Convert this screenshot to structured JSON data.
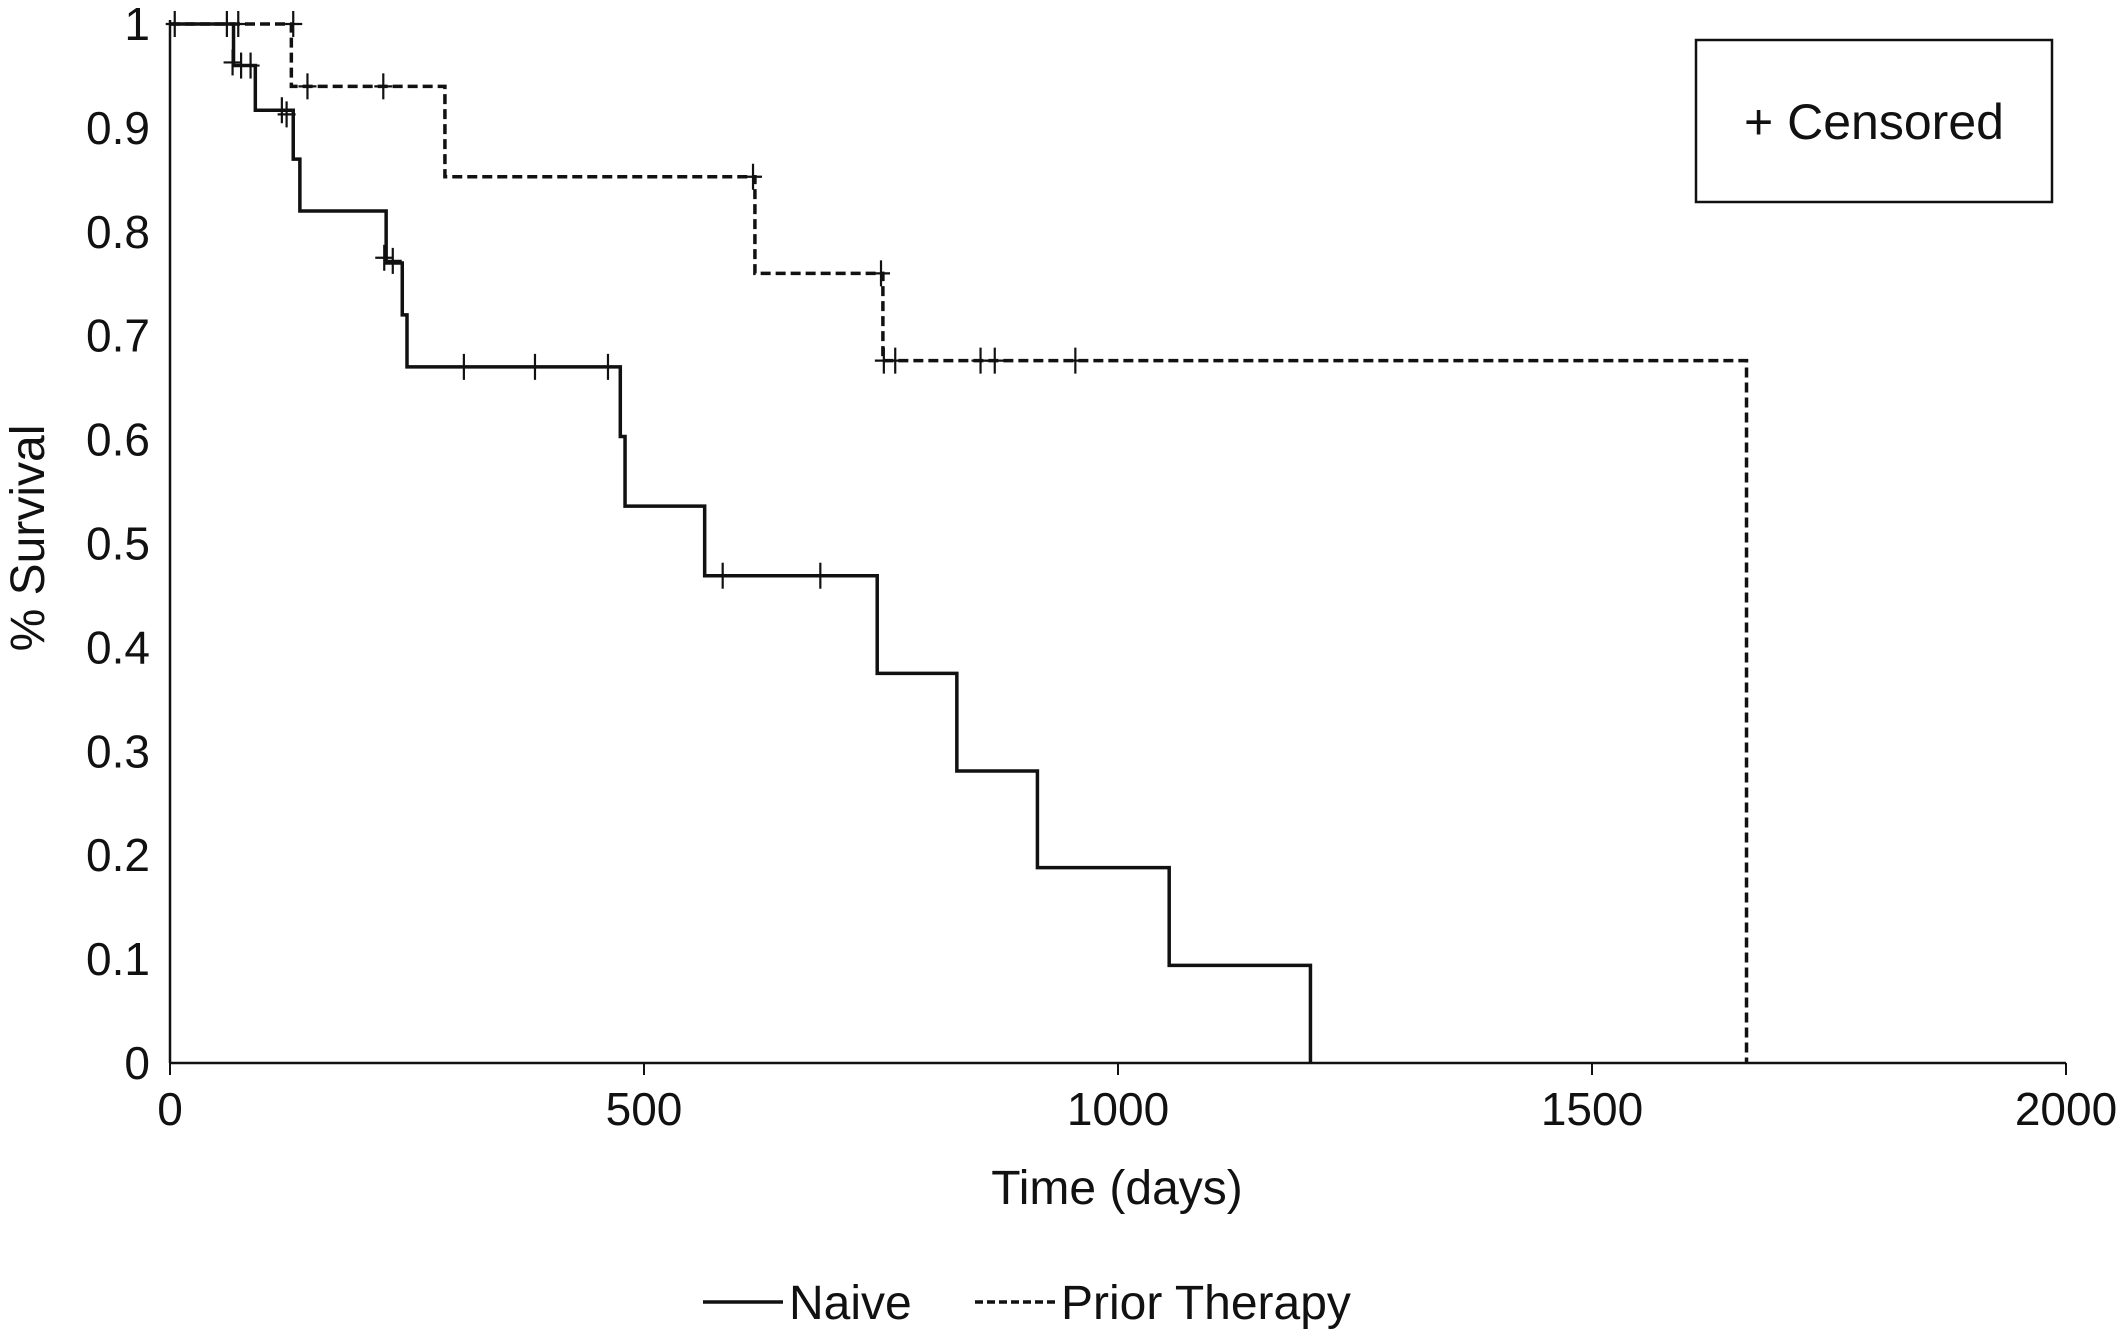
{
  "chart_data": {
    "type": "line",
    "title": "",
    "xlabel": "Time (days)",
    "ylabel": "% Survival",
    "xlim": [
      0,
      2000
    ],
    "ylim": [
      0,
      1
    ],
    "xticks": [
      "0",
      "500",
      "1000",
      "1500",
      "2000"
    ],
    "yticks": [
      "0",
      "0.1",
      "0.2",
      "0.3",
      "0.4",
      "0.5",
      "0.6",
      "0.7",
      "0.8",
      "0.9",
      "1"
    ],
    "grid": false,
    "legend_position": "bottom",
    "annotation": "+ Censored",
    "series": [
      {
        "name": "Naive",
        "style": "solid",
        "color": "#111111",
        "steps": [
          [
            0,
            1
          ],
          [
            67,
            0.96
          ],
          [
            90,
            0.917
          ],
          [
            130,
            0.87
          ],
          [
            137,
            0.82
          ],
          [
            228,
            0.77
          ],
          [
            245,
            0.72
          ],
          [
            250,
            0.67
          ],
          [
            475,
            0.603
          ],
          [
            480,
            0.536
          ],
          [
            564,
            0.469
          ],
          [
            746,
            0.375
          ],
          [
            830,
            0.281
          ],
          [
            915,
            0.188
          ],
          [
            1054,
            0.094
          ],
          [
            1203,
            0
          ]
        ],
        "censored": [
          [
            5,
            1
          ],
          [
            60,
            1
          ],
          [
            66,
            0.963
          ],
          [
            75,
            0.96
          ],
          [
            85,
            0.96
          ],
          [
            118,
            0.917
          ],
          [
            123,
            0.913
          ],
          [
            226,
            0.775
          ],
          [
            235,
            0.772
          ],
          [
            310,
            0.67
          ],
          [
            385,
            0.67
          ],
          [
            462,
            0.67
          ],
          [
            583,
            0.469
          ],
          [
            686,
            0.469
          ]
        ]
      },
      {
        "name": "Prior Therapy",
        "style": "dashed",
        "color": "#111111",
        "steps": [
          [
            0,
            1
          ],
          [
            128,
            0.94
          ],
          [
            290,
            0.853
          ],
          [
            617,
            0.76
          ],
          [
            752,
            0.676
          ],
          [
            1663,
            0
          ]
        ],
        "censored": [
          [
            72,
            1
          ],
          [
            130,
            1
          ],
          [
            145,
            0.94
          ],
          [
            225,
            0.94
          ],
          [
            615,
            0.853
          ],
          [
            750,
            0.76
          ],
          [
            753,
            0.676
          ],
          [
            765,
            0.676
          ],
          [
            855,
            0.676
          ],
          [
            870,
            0.676
          ],
          [
            955,
            0.676
          ]
        ],
        "line_end": 1663
      }
    ]
  }
}
